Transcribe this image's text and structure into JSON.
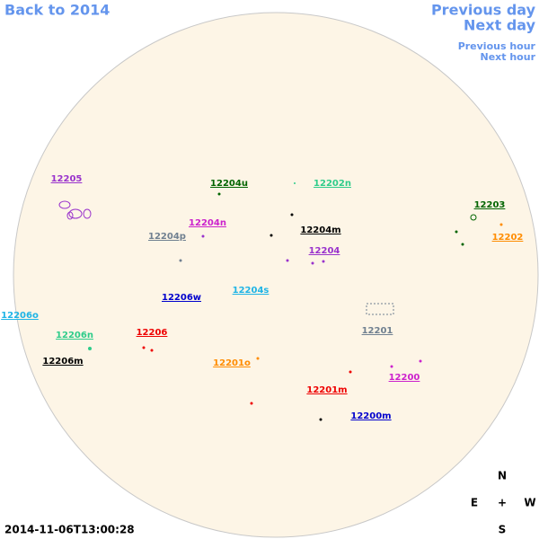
{
  "nav": {
    "back": "Back to 2014",
    "previous_day": "Previous day",
    "next_day": "Next day",
    "previous_hour": "Previous hour",
    "next_hour": "Next hour"
  },
  "timestamp": "2014-11-06T13:00:28",
  "compass": {
    "north": "N",
    "east": "E",
    "center": "+",
    "west": "W",
    "south": "S"
  },
  "regions": [
    {
      "label": "12205",
      "color": "#9932cc"
    },
    {
      "label": "12204u",
      "color": "#006400"
    },
    {
      "label": "12202n",
      "color": "#2ecc8a"
    },
    {
      "label": "12203",
      "color": "#006400"
    },
    {
      "label": "12204n",
      "color": "#cc22cc"
    },
    {
      "label": "12204m",
      "color": "#000000"
    },
    {
      "label": "12204p",
      "color": "#708090"
    },
    {
      "label": "12204",
      "color": "#9932cc"
    },
    {
      "label": "12202",
      "color": "#ff8c00"
    },
    {
      "label": "12206w",
      "color": "#0000cd"
    },
    {
      "label": "12204s",
      "color": "#1eb4e6"
    },
    {
      "label": "12206o",
      "color": "#1eb4e6"
    },
    {
      "label": "12201",
      "color": "#708090"
    },
    {
      "label": "12206n",
      "color": "#2ecc8a"
    },
    {
      "label": "12206",
      "color": "#ee0000"
    },
    {
      "label": "12206m",
      "color": "#000000"
    },
    {
      "label": "12201o",
      "color": "#ff8c00"
    },
    {
      "label": "12200",
      "color": "#cc22cc"
    },
    {
      "label": "12201m",
      "color": "#ee0000"
    },
    {
      "label": "12200m",
      "color": "#0000cd"
    }
  ]
}
